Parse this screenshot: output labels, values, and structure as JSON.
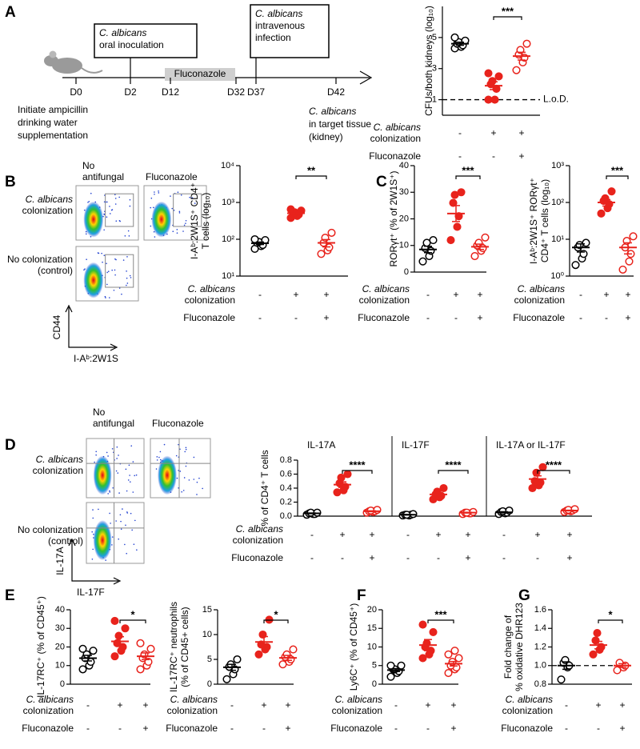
{
  "panel_letters": [
    "A",
    "B",
    "C",
    "D",
    "E",
    "F",
    "G"
  ],
  "timeline": {
    "days": [
      "D0",
      "D2",
      "D12",
      "D32",
      "D37",
      "D42"
    ],
    "treatment": "Fluconazole",
    "boxes": [
      [
        "C. albicans",
        "oral inoculation"
      ],
      [
        "C. albicans",
        "intravenous",
        "infection"
      ]
    ],
    "notes": [
      [
        "Initiate ampicillin",
        "drinking water",
        "supplementation"
      ],
      [
        "C. albicans",
        "in target tissue",
        "(kidney)"
      ]
    ]
  },
  "flow_columns": [
    [
      "No",
      "antifungal"
    ],
    [
      "Fluconazole"
    ]
  ],
  "flow_rows": [
    [
      "C. albicans",
      "colonization"
    ],
    [
      "No colonization",
      "(control)"
    ]
  ],
  "flow_axes": {
    "B": {
      "y": "CD44",
      "x": "I-Aᵇ:2W1S"
    },
    "D": {
      "y": "IL-17A",
      "x": "IL-17F"
    }
  },
  "conditions": [
    {
      "label": [
        "C. albicans",
        "colonization"
      ],
      "signs": [
        "-",
        "+",
        "+"
      ]
    },
    {
      "label": [
        "Fluconazole"
      ],
      "signs": [
        "-",
        "-",
        "+"
      ]
    }
  ],
  "chart_data": [
    {
      "type": "dot",
      "ylabel": [
        "CFUs/both kidneys (log₁₀)"
      ],
      "ylim": [
        0,
        7
      ],
      "yticks": [
        1,
        3,
        5
      ],
      "sig": "***",
      "refline": {
        "value": 1,
        "label": "L.o.D."
      },
      "groups": [
        {
          "color": "#000000",
          "filled": false,
          "values": [
            4.3,
            4.4,
            4.5,
            4.6,
            4.7,
            4.8,
            5.0
          ],
          "mean": 4.6,
          "sem": 0.1
        },
        {
          "color": "#e8231c",
          "filled": true,
          "values": [
            1.0,
            1.0,
            1.7,
            2.0,
            2.2,
            2.5,
            2.7
          ],
          "mean": 1.9,
          "sem": 0.25
        },
        {
          "color": "#e8231c",
          "filled": false,
          "values": [
            2.9,
            3.4,
            3.7,
            3.9,
            4.2,
            4.6
          ],
          "mean": 3.8,
          "sem": 0.25
        }
      ]
    },
    {
      "type": "dot",
      "ylabel": [
        "I-Aᵇ:2W1S⁺ CD4⁺",
        "T cells (log₁₀)"
      ],
      "log": true,
      "ylim": [
        10,
        10000
      ],
      "yticks": [
        {
          "value": 10,
          "label": "10¹"
        },
        {
          "value": 100,
          "label": "10²"
        },
        {
          "value": 1000,
          "label": "10³"
        },
        {
          "value": 10000,
          "label": "10⁴"
        }
      ],
      "sig": "**",
      "groups": [
        {
          "color": "#000000",
          "filled": false,
          "values": [
            55,
            65,
            70,
            80,
            85,
            95,
            100
          ],
          "mean": 78,
          "sem": 6
        },
        {
          "color": "#e8231c",
          "filled": true,
          "values": [
            380,
            430,
            470,
            500,
            540,
            600,
            650
          ],
          "mean": 510,
          "sem": 35
        },
        {
          "color": "#e8231c",
          "filled": false,
          "values": [
            40,
            50,
            60,
            80,
            110,
            150
          ],
          "mean": 80,
          "sem": 18
        }
      ]
    },
    {
      "type": "dot",
      "ylabel": [
        "RORγt⁺ (% of 2W1S⁺)"
      ],
      "ylim": [
        0,
        40
      ],
      "yticks": [
        0,
        10,
        20,
        30,
        40
      ],
      "sig": "***",
      "groups": [
        {
          "color": "#000000",
          "filled": false,
          "values": [
            4,
            6,
            8,
            9,
            11,
            12
          ],
          "mean": 8.5,
          "sem": 1.2
        },
        {
          "color": "#e8231c",
          "filled": true,
          "values": [
            12,
            17,
            21,
            26,
            29,
            30
          ],
          "mean": 22,
          "sem": 3
        },
        {
          "color": "#e8231c",
          "filled": false,
          "values": [
            6,
            8,
            9,
            10,
            11,
            13
          ],
          "mean": 9.5,
          "sem": 1
        }
      ]
    },
    {
      "type": "dot",
      "ylabel": [
        "I-Aᵇ:2W1S⁺ RORγt⁺",
        "CD4⁺ T cells (log₁₀)"
      ],
      "log": true,
      "ylim": [
        1,
        1000
      ],
      "yticks": [
        {
          "value": 1,
          "label": "10⁰"
        },
        {
          "value": 10,
          "label": "10¹"
        },
        {
          "value": 100,
          "label": "10²"
        },
        {
          "value": 1000,
          "label": "10³"
        }
      ],
      "sig": "***",
      "groups": [
        {
          "color": "#000000",
          "filled": false,
          "values": [
            2,
            3,
            4,
            6,
            7,
            8
          ],
          "mean": 6,
          "sem": 1.5
        },
        {
          "color": "#e8231c",
          "filled": true,
          "values": [
            50,
            70,
            90,
            110,
            130,
            200
          ],
          "mean": 100,
          "sem": 20
        },
        {
          "color": "#e8231c",
          "filled": false,
          "values": [
            1.5,
            2.5,
            4,
            6,
            9,
            12
          ],
          "mean": 6,
          "sem": 2
        }
      ]
    },
    {
      "type": "dot",
      "title": "IL-17A",
      "ylabel": [
        "% of CD4⁺ T cells"
      ],
      "ylim": [
        0,
        0.8
      ],
      "yticks": [
        {
          "value": 0,
          "label": "0.0"
        },
        0.2,
        0.4,
        0.6,
        0.8
      ],
      "sig": "****",
      "groups": [
        {
          "color": "#000000",
          "filled": false,
          "values": [
            0.02,
            0.03,
            0.03,
            0.04,
            0.05,
            0.05
          ],
          "mean": 0.04,
          "sem": 0.005
        },
        {
          "color": "#e8231c",
          "filled": true,
          "values": [
            0.34,
            0.37,
            0.42,
            0.47,
            0.55,
            0.6
          ],
          "mean": 0.45,
          "sem": 0.04
        },
        {
          "color": "#e8231c",
          "filled": false,
          "values": [
            0.05,
            0.06,
            0.07,
            0.07,
            0.08,
            0.09
          ],
          "mean": 0.07,
          "sem": 0.006
        }
      ]
    },
    {
      "type": "dot",
      "title": "IL-17F",
      "ylim": [
        0,
        0.8
      ],
      "sig": "****",
      "groups": [
        {
          "color": "#000000",
          "filled": false,
          "values": [
            0.01,
            0.01,
            0.02,
            0.02,
            0.02,
            0.03
          ],
          "mean": 0.02,
          "sem": 0.003
        },
        {
          "color": "#e8231c",
          "filled": true,
          "values": [
            0.24,
            0.27,
            0.29,
            0.31,
            0.35,
            0.4
          ],
          "mean": 0.31,
          "sem": 0.025
        },
        {
          "color": "#e8231c",
          "filled": false,
          "values": [
            0.03,
            0.04,
            0.04,
            0.05,
            0.05,
            0.06
          ],
          "mean": 0.05,
          "sem": 0.005
        }
      ]
    },
    {
      "type": "dot",
      "title": "IL-17A or IL-17F",
      "ylim": [
        0,
        0.8
      ],
      "sig": "****",
      "groups": [
        {
          "color": "#000000",
          "filled": false,
          "values": [
            0.03,
            0.04,
            0.05,
            0.06,
            0.07,
            0.08
          ],
          "mean": 0.055,
          "sem": 0.008
        },
        {
          "color": "#e8231c",
          "filled": true,
          "values": [
            0.4,
            0.44,
            0.48,
            0.5,
            0.62,
            0.7
          ],
          "mean": 0.53,
          "sem": 0.045
        },
        {
          "color": "#e8231c",
          "filled": false,
          "values": [
            0.06,
            0.07,
            0.08,
            0.08,
            0.09,
            0.1
          ],
          "mean": 0.08,
          "sem": 0.005
        }
      ]
    },
    {
      "type": "dot",
      "ylabel": [
        "IL-17RC⁺ (% of CD45⁺)"
      ],
      "ylim": [
        0,
        40
      ],
      "yticks": [
        0,
        10,
        20,
        30,
        40
      ],
      "sig": "*",
      "groups": [
        {
          "color": "#000000",
          "filled": false,
          "values": [
            8,
            10,
            12,
            14,
            16,
            18,
            19
          ],
          "mean": 14,
          "sem": 1.5
        },
        {
          "color": "#e8231c",
          "filled": true,
          "values": [
            15,
            18,
            20,
            22,
            26,
            30,
            34
          ],
          "mean": 23,
          "sem": 2.5
        },
        {
          "color": "#e8231c",
          "filled": false,
          "values": [
            8,
            10,
            12,
            14,
            16,
            19,
            22
          ],
          "mean": 15,
          "sem": 1.8
        }
      ]
    },
    {
      "type": "dot",
      "ylabel": [
        "IL-17RC⁺ neutrophils",
        "(% of CD45+ cells)"
      ],
      "ylim": [
        0,
        15
      ],
      "yticks": [
        0,
        5,
        10,
        15
      ],
      "sig": "*",
      "groups": [
        {
          "color": "#000000",
          "filled": false,
          "values": [
            1,
            2,
            3,
            3.5,
            4,
            5
          ],
          "mean": 3.4,
          "sem": 0.6
        },
        {
          "color": "#e8231c",
          "filled": true,
          "values": [
            6,
            7,
            7.5,
            8,
            10,
            13
          ],
          "mean": 8.5,
          "sem": 1.1
        },
        {
          "color": "#e8231c",
          "filled": false,
          "values": [
            4,
            4.5,
            5,
            5.5,
            6,
            7
          ],
          "mean": 5.3,
          "sem": 0.5
        }
      ]
    },
    {
      "type": "dot",
      "ylabel": [
        "Ly6C⁺ (% of CD45⁺)"
      ],
      "ylim": [
        0,
        20
      ],
      "yticks": [
        0,
        5,
        10,
        15,
        20
      ],
      "sig": "***",
      "groups": [
        {
          "color": "#000000",
          "filled": false,
          "values": [
            2,
            3,
            3.5,
            4,
            4,
            5,
            5
          ],
          "mean": 3.8,
          "sem": 0.4
        },
        {
          "color": "#e8231c",
          "filled": true,
          "values": [
            7,
            8,
            9,
            10,
            11,
            14,
            16
          ],
          "mean": 10.5,
          "sem": 1.5
        },
        {
          "color": "#e8231c",
          "filled": false,
          "values": [
            3,
            4,
            4.5,
            5,
            6,
            7,
            8,
            9
          ],
          "mean": 5.5,
          "sem": 0.6
        }
      ]
    },
    {
      "type": "dot",
      "ylabel": [
        "Fold change of",
        "% oxidative DHR123"
      ],
      "ylim": [
        0.8,
        1.6
      ],
      "yticks": [
        0.8,
        {
          "value": 1,
          "label": "1.0"
        },
        1.2,
        1.4,
        1.6
      ],
      "sig": "*",
      "refline": {
        "value": 1
      },
      "groups": [
        {
          "color": "#000000",
          "filled": false,
          "values": [
            0.85,
            0.98,
            1.0,
            1.03,
            1.06
          ],
          "mean": 1.0,
          "sem": 0.04
        },
        {
          "color": "#e8231c",
          "filled": true,
          "values": [
            1.12,
            1.17,
            1.2,
            1.27,
            1.35
          ],
          "mean": 1.22,
          "sem": 0.04
        },
        {
          "color": "#e8231c",
          "filled": false,
          "values": [
            0.95,
            0.98,
            1.0,
            1.03
          ],
          "mean": 1.0,
          "sem": 0.02
        }
      ]
    }
  ]
}
